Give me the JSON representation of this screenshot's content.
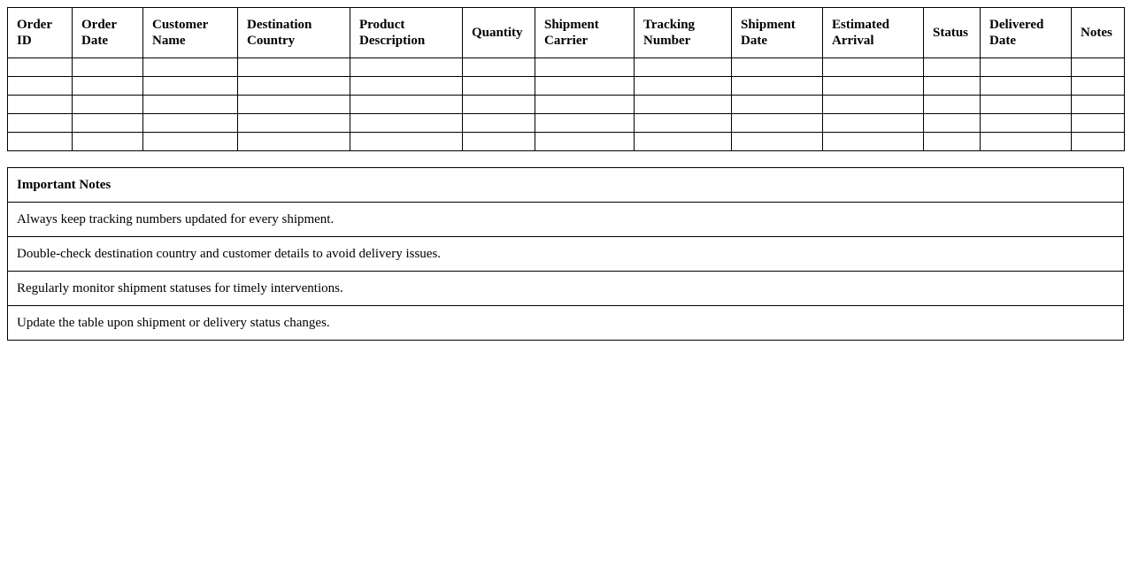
{
  "shipment_table": {
    "columns": [
      "Order ID",
      "Order Date",
      "Customer Name",
      "Destination Country",
      "Product Description",
      "Quantity",
      "Shipment Carrier",
      "Tracking Number",
      "Shipment Date",
      "Estimated Arrival",
      "Status",
      "Delivered Date",
      "Notes"
    ],
    "empty_rows": 5
  },
  "notes_table": {
    "title": "Important Notes",
    "items": [
      "Always keep tracking numbers updated for every shipment.",
      "Double-check destination country and customer details to avoid delivery issues.",
      "Regularly monitor shipment statuses for timely interventions.",
      "Update the table upon shipment or delivery status changes."
    ]
  }
}
